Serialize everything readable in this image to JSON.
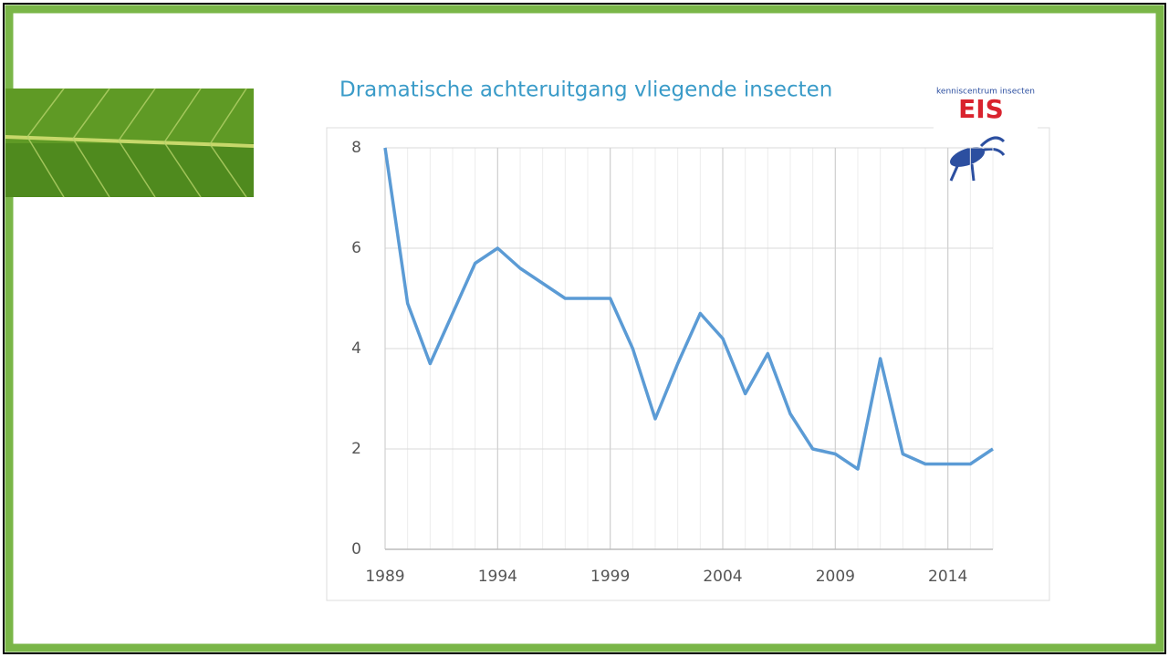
{
  "chart_data": {
    "type": "line",
    "title": "Dramatische achteruitgang vliegende insecten",
    "logo_text": "EIS",
    "logo_caption": "kenniscentrum insecten",
    "x": [
      1989,
      1990,
      1991,
      1992,
      1993,
      1994,
      1995,
      1996,
      1997,
      1998,
      1999,
      2000,
      2001,
      2002,
      2003,
      2004,
      2005,
      2006,
      2007,
      2008,
      2009,
      2010,
      2011,
      2012,
      2013,
      2014,
      2015,
      2016
    ],
    "values": [
      8.0,
      4.9,
      3.7,
      4.7,
      5.7,
      6.0,
      5.6,
      5.3,
      5.0,
      5.0,
      5.0,
      4.0,
      2.6,
      3.7,
      4.7,
      4.2,
      3.1,
      3.9,
      2.7,
      2.0,
      1.9,
      1.6,
      3.8,
      1.9,
      1.7,
      1.7,
      1.7,
      2.0
    ],
    "color": "#5b9bd5",
    "xlim": [
      1989,
      2016
    ],
    "xticks": [
      1989,
      1994,
      1999,
      2004,
      2009,
      2014
    ],
    "ylim": [
      0,
      8
    ],
    "yticks": [
      0,
      2,
      4,
      6,
      8
    ],
    "grid": true,
    "x_minor_grid": true
  }
}
